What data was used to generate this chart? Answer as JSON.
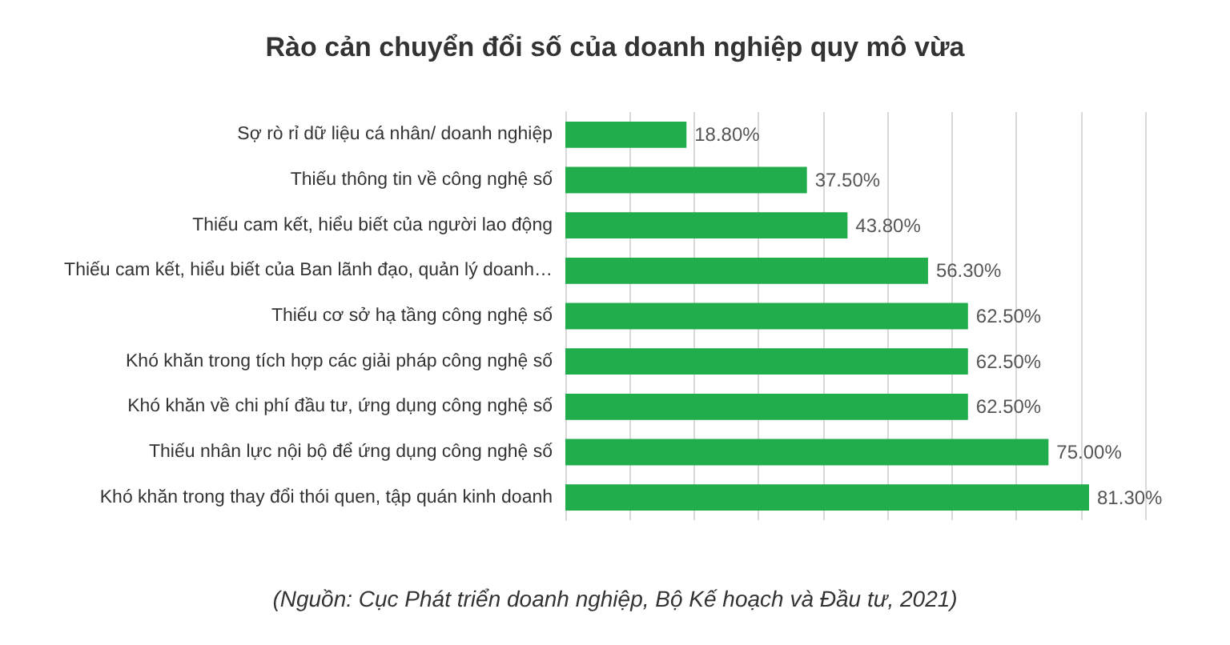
{
  "chart_data": {
    "type": "bar",
    "orientation": "horizontal",
    "title": "Rào cản chuyển đổi số của doanh nghiệp quy mô vừa",
    "categories": [
      "Sợ rò rỉ dữ liệu cá nhân/ doanh nghiệp",
      "Thiếu thông tin về công nghệ số",
      "Thiếu cam kết, hiểu biết của người lao động",
      "Thiếu cam kết, hiểu biết của Ban lãnh đạo, quản lý doanh…",
      "Thiếu cơ sở hạ tầng công nghệ số",
      "Khó khăn trong tích hợp các giải pháp công nghệ số",
      "Khó khăn về chi phí đầu tư, ứng dụng công nghệ số",
      "Thiếu nhân lực nội bộ để ứng dụng công nghệ số",
      "Khó khăn trong thay đổi thói quen, tập quán kinh doanh"
    ],
    "values": [
      18.8,
      37.5,
      43.8,
      56.3,
      62.5,
      62.5,
      62.5,
      75.0,
      81.3
    ],
    "value_labels": [
      "18.80%",
      "37.50%",
      "43.80%",
      "56.30%",
      "62.50%",
      "62.50%",
      "62.50%",
      "75.00%",
      "81.30%"
    ],
    "color": "#21ad4b",
    "xlim": [
      0,
      90
    ],
    "xticks": [
      {
        "value": 0,
        "label": null
      },
      {
        "value": 10,
        "label": null
      },
      {
        "value": 20,
        "label": null
      },
      {
        "value": 30,
        "label": null
      },
      {
        "value": 40,
        "label": null
      },
      {
        "value": 50,
        "label": null
      },
      {
        "value": 60,
        "label": null
      },
      {
        "value": 70,
        "label": null
      },
      {
        "value": 80,
        "label": null
      },
      {
        "value": 90,
        "label": null
      }
    ],
    "tick_labels": "y",
    "grid": "x",
    "annotations": [
      "(Nguồn: Cục Phát triển doanh nghiệp, Bộ Kế hoạch và Đầu tư, 2021)"
    ]
  }
}
